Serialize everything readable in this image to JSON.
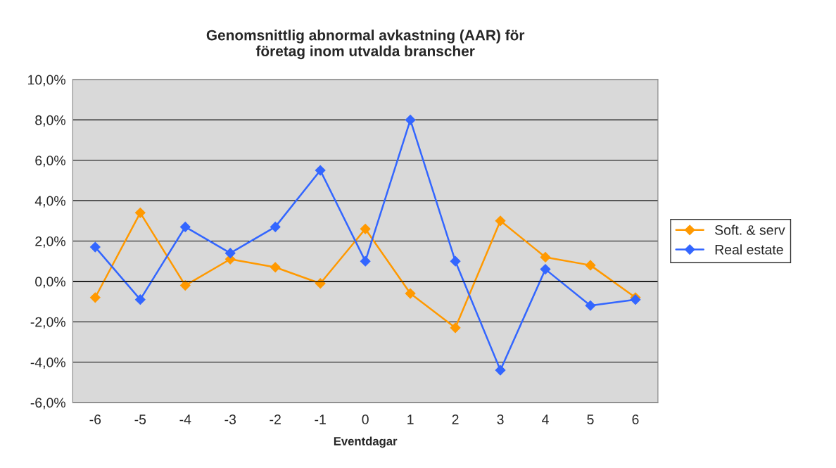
{
  "chart_data": {
    "type": "line",
    "title": "Genomsnittlig abnormal avkastning (AAR) för\nföretag inom utvalda branscher",
    "xlabel": "Eventdagar",
    "categories": [
      "-6",
      "-5",
      "-4",
      "-3",
      "-2",
      "-1",
      "0",
      "1",
      "2",
      "3",
      "4",
      "5",
      "6"
    ],
    "series": [
      {
        "name": "Soft. & serv",
        "color": "#ff9900",
        "values": [
          -0.8,
          3.4,
          -0.2,
          1.1,
          0.7,
          -0.1,
          2.6,
          -0.6,
          -2.3,
          3.0,
          1.2,
          0.8,
          -0.8
        ]
      },
      {
        "name": "Real estate",
        "color": "#3366ff",
        "values": [
          1.7,
          -0.9,
          2.7,
          1.4,
          2.7,
          5.5,
          1.0,
          8.0,
          1.0,
          -4.4,
          0.6,
          -1.2,
          -0.9
        ]
      }
    ],
    "ylim": [
      -6,
      10
    ],
    "yticks": [
      {
        "value": -6,
        "label": "-6,0%"
      },
      {
        "value": -4,
        "label": "-4,0%"
      },
      {
        "value": -2,
        "label": "-2,0%"
      },
      {
        "value": 0,
        "label": "0,0%"
      },
      {
        "value": 2,
        "label": "2,0%"
      },
      {
        "value": 4,
        "label": "4,0%"
      },
      {
        "value": 6,
        "label": "6,0%"
      },
      {
        "value": 8,
        "label": "8,0%"
      },
      {
        "value": 10,
        "label": "10,0%"
      }
    ],
    "grid": "y",
    "legend": "right",
    "marker": "diamond",
    "line_style": "solid"
  }
}
